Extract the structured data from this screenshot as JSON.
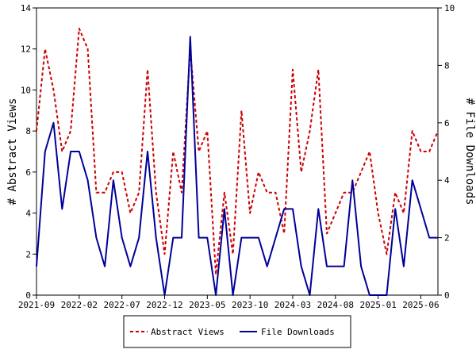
{
  "chart_data": {
    "type": "line",
    "title": "",
    "ylabel_left": "# Abstract Views",
    "ylabel_right": "# File Downloads",
    "ylim_left": [
      0,
      14
    ],
    "ylim_right": [
      0,
      10
    ],
    "yticks_left": [
      "0",
      "2",
      "4",
      "6",
      "8",
      "10",
      "12",
      "14"
    ],
    "yticks_right": [
      "0",
      "2",
      "4",
      "6",
      "8",
      "10"
    ],
    "x_tick_labels": [
      "2021-09",
      "2022-02",
      "2022-07",
      "2022-12",
      "2023-05",
      "2023-10",
      "2024-03",
      "2024-08",
      "2025-01",
      "2025-06"
    ],
    "x_tick_index": [
      0,
      5,
      10,
      15,
      20,
      25,
      30,
      35,
      40,
      45
    ],
    "grid": false,
    "legend_position": "bottom",
    "series": [
      {
        "name": "Abstract Views",
        "axis": "left",
        "color": "#cc0000",
        "dash": "dashed",
        "values": [
          8,
          12,
          10,
          7,
          8,
          13,
          12,
          5,
          5,
          6,
          6,
          4,
          5,
          11,
          5,
          2,
          7,
          5,
          12,
          7,
          8,
          1,
          5,
          2,
          9,
          4,
          6,
          5,
          5,
          3,
          11,
          6,
          8,
          11,
          3,
          4,
          5,
          5,
          6,
          7,
          4,
          2,
          5,
          4,
          8,
          7,
          7,
          8
        ]
      },
      {
        "name": "File Downloads",
        "axis": "right",
        "color": "#000099",
        "dash": "solid",
        "values": [
          1,
          5,
          6,
          3,
          5,
          5,
          4,
          2,
          1,
          4,
          2,
          1,
          2,
          5,
          2,
          0,
          2,
          2,
          9,
          2,
          2,
          0,
          3,
          0,
          2,
          2,
          2,
          1,
          2,
          3,
          3,
          1,
          0,
          3,
          1,
          1,
          1,
          4,
          1,
          0,
          0,
          0,
          3,
          1,
          4,
          3,
          2,
          2
        ]
      }
    ]
  }
}
